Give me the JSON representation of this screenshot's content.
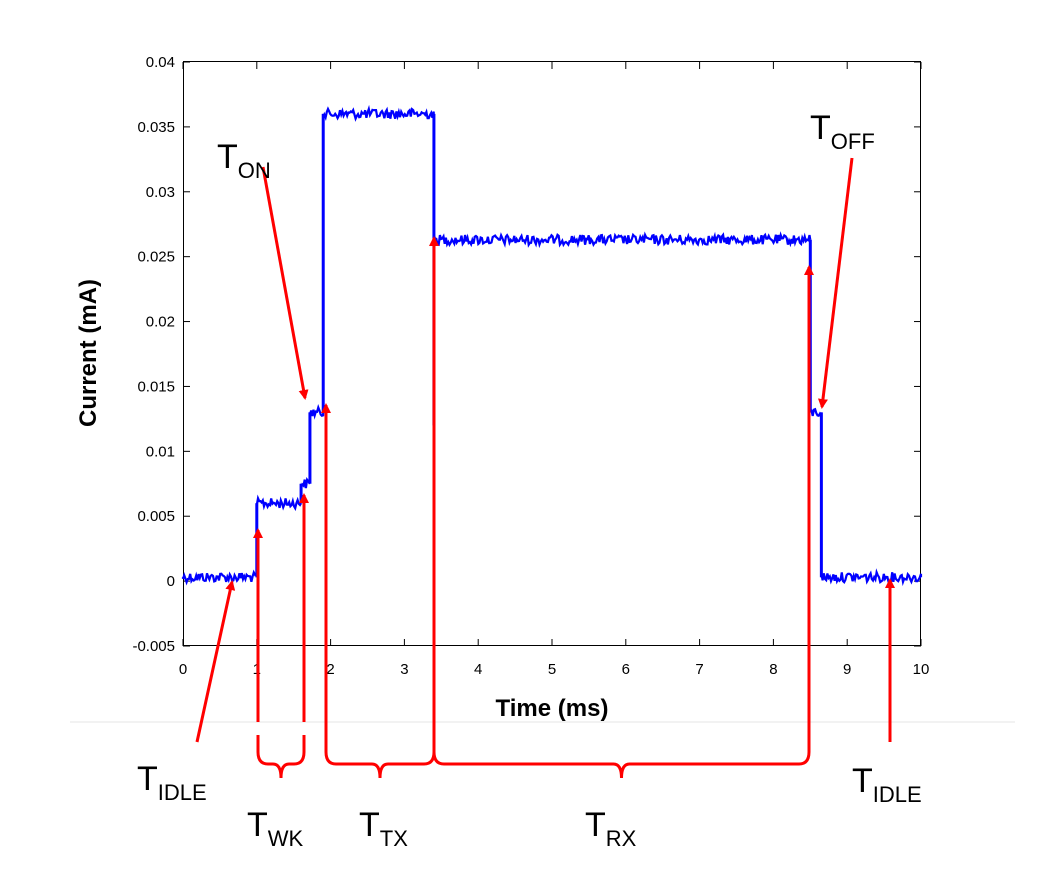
{
  "chart_data": {
    "type": "line",
    "xlabel": "Time (ms)",
    "ylabel": "Current (mA)",
    "xlim": [
      0,
      10
    ],
    "ylim": [
      -0.005,
      0.04
    ],
    "x_ticks": [
      0,
      1,
      2,
      3,
      4,
      5,
      6,
      7,
      8,
      9,
      10
    ],
    "y_ticks": [
      -0.005,
      0,
      0.005,
      0.01,
      0.015,
      0.02,
      0.025,
      0.03,
      0.035,
      0.04
    ],
    "grid": false,
    "series": [
      {
        "color": "#0000ff",
        "segments": [
          {
            "x_start": 0.0,
            "x_end": 1.0,
            "y": 0.0003
          },
          {
            "x_start": 1.0,
            "x_end": 1.6,
            "y": 0.006
          },
          {
            "x_start": 1.6,
            "x_end": 1.72,
            "y": 0.0075
          },
          {
            "x_start": 1.72,
            "x_end": 1.9,
            "y": 0.013
          },
          {
            "x_start": 1.9,
            "x_end": 3.4,
            "y": 0.036
          },
          {
            "x_start": 3.4,
            "x_end": 8.5,
            "y": 0.0263
          },
          {
            "x_start": 8.5,
            "x_end": 8.65,
            "y": 0.013
          },
          {
            "x_start": 8.65,
            "x_end": 10.0,
            "y": 0.0003
          }
        ]
      }
    ]
  },
  "annotations": {
    "color": "#ff0000",
    "labels": [
      {
        "id": "t-on",
        "main": "T",
        "sub": "ON"
      },
      {
        "id": "t-off",
        "main": "T",
        "sub": "OFF"
      },
      {
        "id": "t-idle-left",
        "main": "T",
        "sub": "IDLE"
      },
      {
        "id": "t-wk",
        "main": "T",
        "sub": "WK"
      },
      {
        "id": "t-tx",
        "main": "T",
        "sub": "TX"
      },
      {
        "id": "t-rx",
        "main": "T",
        "sub": "RX"
      },
      {
        "id": "t-idle-right",
        "main": "T",
        "sub": "IDLE"
      }
    ]
  }
}
